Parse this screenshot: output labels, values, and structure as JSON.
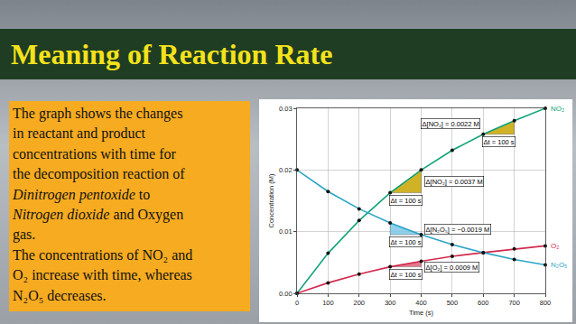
{
  "slide": {
    "title": "Meaning of Reaction Rate",
    "text": [
      "The graph shows the changes",
      "in reactant and product",
      "concentrations with time for",
      "the decomposition reaction of",
      "Dinitrogen pentoxide to",
      "Nitrogen dioxide and Oxygen",
      "gas.",
      "The concentrations of NO₂ and",
      "O₂ increase with time, whereas",
      "N₂O₅ decreases."
    ],
    "italic": [
      "Dinitrogen pentoxide",
      "Nitrogen dioxide"
    ]
  },
  "chart_data": {
    "type": "line",
    "x_label": "Time (s)",
    "y_label": "Concentration (M)",
    "x": [
      0,
      100,
      200,
      300,
      400,
      500,
      600,
      700,
      800
    ],
    "xlim": [
      0,
      800
    ],
    "xticks": [
      0,
      100,
      200,
      300,
      400,
      500,
      600,
      700,
      800
    ],
    "ylim": [
      0,
      0.03
    ],
    "yticks": [
      {
        "value": 0,
        "label": "0.00"
      },
      0.01,
      0.02,
      0.03
    ],
    "grid": true,
    "marker": "circle",
    "series": [
      {
        "name": "NO₂",
        "color": "#10a37a",
        "values": [
          0,
          0.0065,
          0.0118,
          0.0163,
          0.02,
          0.0232,
          0.0258,
          0.028,
          0.03
        ]
      },
      {
        "name": "O₂",
        "color": "#d22a4e",
        "values": [
          0,
          0.0017,
          0.0031,
          0.0043,
          0.0052,
          0.006,
          0.0066,
          0.0072,
          0.0077
        ]
      },
      {
        "name": "N₂O₅",
        "color": "#2aa5c6",
        "values": [
          0.02,
          0.0165,
          0.0137,
          0.0114,
          0.0095,
          0.0079,
          0.0066,
          0.0055,
          0.0046
        ]
      }
    ],
    "annotations": [
      {
        "series": "NO₂",
        "x0": 600,
        "x1": 700,
        "text": "Δ[NO₂] = 0.0022 M",
        "dt_text": "Δt = 100 s"
      },
      {
        "series": "NO₂",
        "x0": 300,
        "x1": 400,
        "text": "Δ[NO₂] = 0.0037 M",
        "dt_text": "Δt = 100 s"
      },
      {
        "series": "N₂O₅",
        "x0": 300,
        "x1": 400,
        "text": "Δ[N₂O₅] = −0.0019 M",
        "dt_text": "Δt = 100 s"
      },
      {
        "series": "O₂",
        "x0": 300,
        "x1": 400,
        "text": "Δ[O₂] = 0.0009 M",
        "dt_text": "Δt = 100 s"
      }
    ]
  }
}
